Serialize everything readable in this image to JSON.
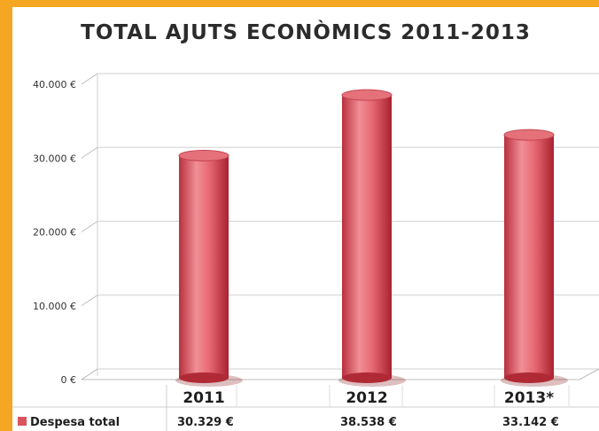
{
  "chart_data": {
    "type": "bar",
    "title": "TOTAL AJUTS ECONÒMICS 2011-2013",
    "categories": [
      "2011",
      "2012",
      "2013*"
    ],
    "series": [
      {
        "name": "Despesa total",
        "values": [
          30329,
          38538,
          33142
        ],
        "color": "#d9545f"
      }
    ],
    "value_labels": [
      "30.329 €",
      "38.538 €",
      "33.142 €"
    ],
    "y_ticks": [
      {
        "value": 0,
        "label": "0 €"
      },
      {
        "value": 10000,
        "label": "10.000 €"
      },
      {
        "value": 20000,
        "label": "20.000 €"
      },
      {
        "value": 30000,
        "label": "30.000 €"
      },
      {
        "value": 40000,
        "label": "40.000 €"
      }
    ],
    "ylim": [
      0,
      40000
    ],
    "grid": true,
    "legend": "bottom-left (data table)",
    "bar_shape": "3d-cylinder"
  },
  "colors": {
    "background": "#f5a623",
    "bar": "#d9545f",
    "grid": "#d9d9d9"
  }
}
